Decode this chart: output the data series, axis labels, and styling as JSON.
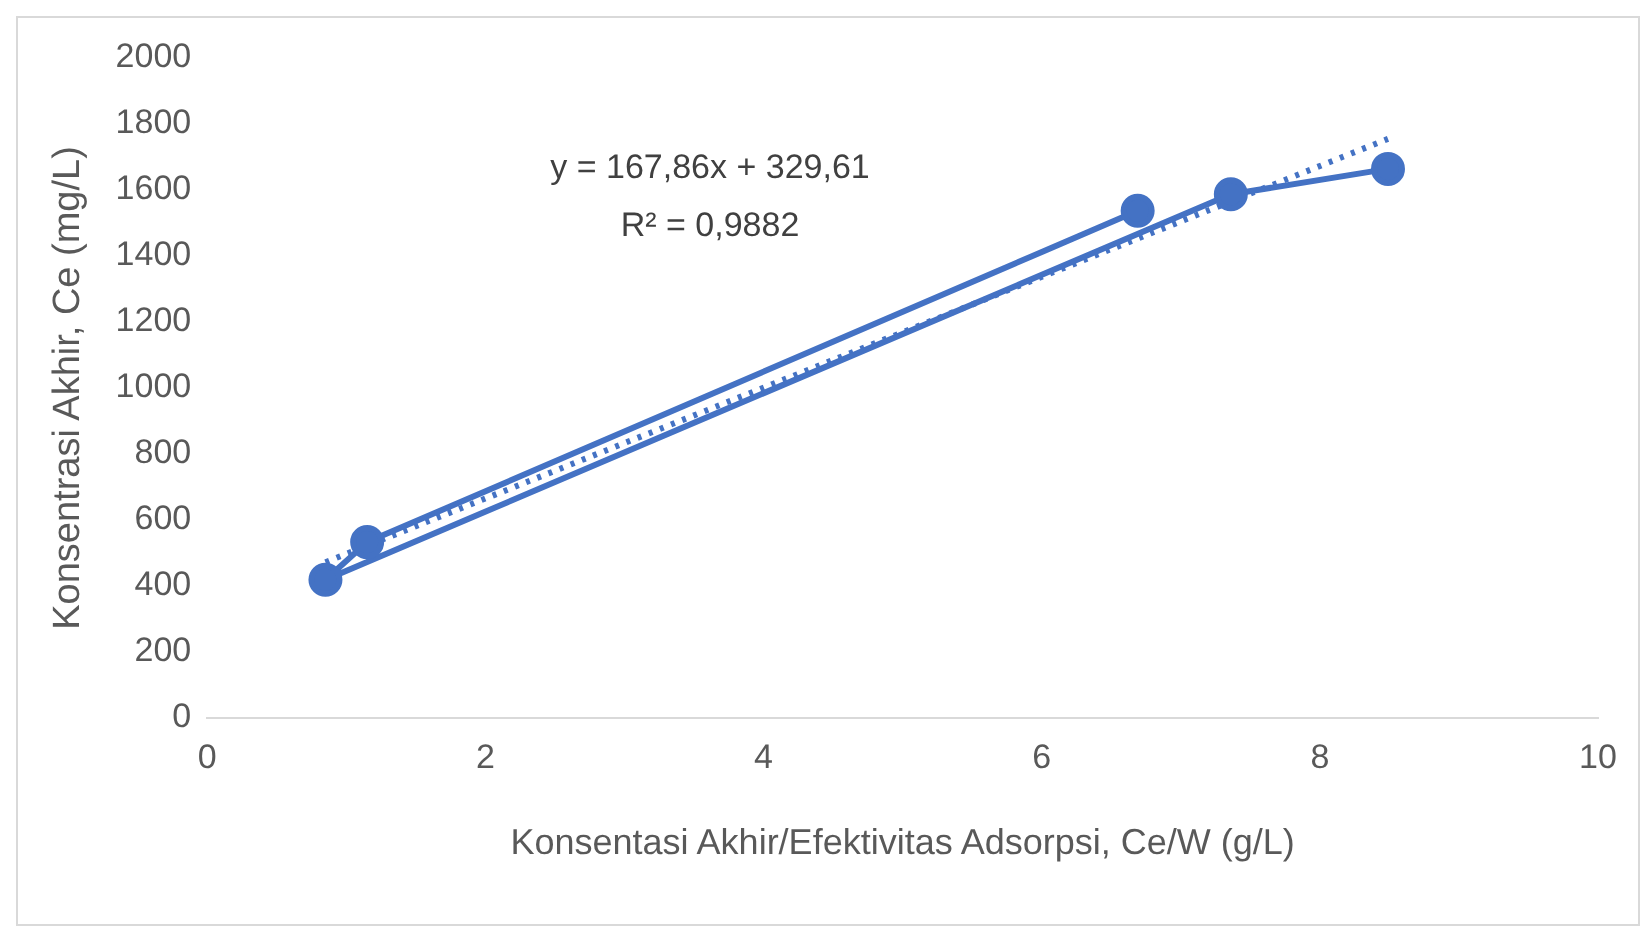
{
  "chart_data": {
    "type": "line",
    "xlabel": "Konsentasi Akhir/Efektivitas Adsorpsi, Ce/W (g/L)",
    "ylabel": "Konsentrasi Akhir, Ce (mg/L)",
    "annotations": [
      "y = 167,86x + 329,61",
      "R² = 0,9882"
    ],
    "xlim": [
      0,
      10
    ],
    "xticks": [
      0,
      2,
      4,
      6,
      8,
      10
    ],
    "ylim": [
      0,
      2000
    ],
    "yticks": [
      0,
      200,
      400,
      600,
      800,
      1000,
      1200,
      1400,
      1600,
      1800,
      2000
    ],
    "grid": false,
    "legend": false,
    "series": [
      {
        "color": "#4472c4",
        "marker": "circle",
        "line_style": "solid",
        "x": [
          6.69,
          1.15,
          0.85,
          7.36,
          8.49
        ],
        "values": [
          1537,
          533,
          419,
          1587,
          1664
        ]
      },
      {
        "color": "#4472c4",
        "marker": "none",
        "line_style": "dotted",
        "x": [
          0.85,
          8.49
        ],
        "values": [
          472,
          1755
        ]
      }
    ]
  }
}
